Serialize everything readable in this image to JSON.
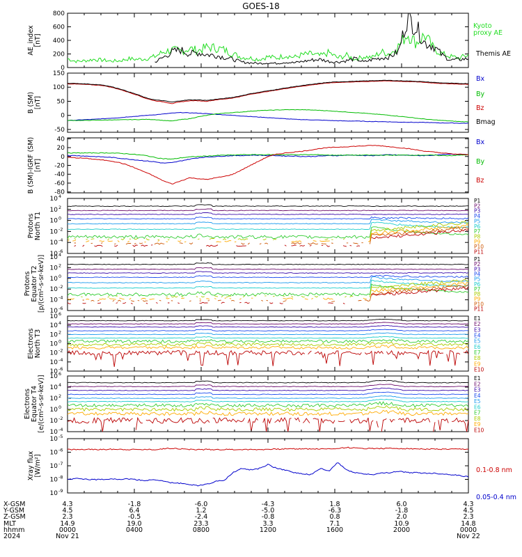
{
  "title": "GOES-18",
  "chart_data": [
    {
      "type": "line",
      "ylabel": [
        "AE_index",
        "[nT]"
      ],
      "ylim": [
        0,
        800
      ],
      "yticks": [
        "0",
        "200",
        "400",
        "600",
        "800"
      ],
      "series": [
        {
          "name": "Kyoto",
          "color": "#22dd22",
          "values": [
            130,
            90,
            100,
            120,
            110,
            95,
            100,
            130,
            120,
            130,
            160,
            230,
            260,
            240,
            280,
            250,
            300,
            290,
            260,
            200,
            150,
            140,
            120,
            160,
            140,
            180,
            150,
            190,
            200,
            170,
            220,
            140,
            180,
            120,
            160,
            150,
            230,
            200,
            320,
            500,
            360,
            480,
            280,
            200,
            160,
            140,
            190
          ]
        },
        {
          "name": "Themis AE",
          "color": "#000000",
          "values": [
            null,
            null,
            null,
            null,
            null,
            null,
            null,
            null,
            null,
            null,
            80,
            150,
            230,
            260,
            200,
            220,
            190,
            180,
            150,
            120,
            80,
            70,
            60,
            70,
            60,
            80,
            70,
            90,
            110,
            120,
            90,
            80,
            100,
            130,
            80,
            120,
            140,
            160,
            240,
            750,
            600,
            360,
            320,
            180,
            110,
            120,
            130
          ]
        }
      ],
      "legend_lines": [
        [
          "Kyoto",
          "proxy AE"
        ],
        [
          "Themis AE"
        ]
      ]
    },
    {
      "type": "line",
      "ylabel": [
        "B (SM)",
        "[nT]"
      ],
      "ylim": [
        -60,
        150
      ],
      "yticks": [
        "-50",
        "0",
        "50",
        "100",
        "150"
      ],
      "series": [
        {
          "name": "Bx",
          "color": "#0000cc",
          "values": [
            -18,
            -17,
            -15,
            -14,
            -12,
            -10,
            -8,
            -5,
            -3,
            0,
            2,
            5,
            8,
            10,
            9,
            8,
            6,
            4,
            2,
            0,
            -2,
            -4,
            -6,
            -8,
            -10,
            -12,
            -14,
            -15,
            -16,
            -17,
            -18,
            -19,
            -20,
            -20,
            -21,
            -22,
            -22,
            -23,
            -24,
            -24,
            -25,
            -25,
            -26,
            -27,
            -27,
            -28,
            -28
          ]
        },
        {
          "name": "By",
          "color": "#00bb00",
          "values": [
            -18,
            -18,
            -18,
            -17,
            -17,
            -16,
            -16,
            -15,
            -15,
            -14,
            -15,
            -18,
            -20,
            -15,
            -12,
            -5,
            0,
            5,
            8,
            10,
            12,
            15,
            17,
            18,
            19,
            20,
            20,
            20,
            19,
            18,
            16,
            14,
            12,
            10,
            8,
            5,
            3,
            0,
            -3,
            -6,
            -10,
            -13,
            -16,
            -18,
            -20,
            -22,
            -23
          ]
        },
        {
          "name": "Bz",
          "color": "#cc0000",
          "values": [
            112,
            111,
            110,
            108,
            106,
            100,
            92,
            82,
            72,
            60,
            52,
            48,
            42,
            48,
            52,
            52,
            50,
            55,
            58,
            62,
            68,
            75,
            80,
            85,
            90,
            95,
            100,
            104,
            108,
            112,
            115,
            117,
            118,
            119,
            120,
            121,
            122,
            122,
            121,
            120,
            119,
            117,
            115,
            113,
            112,
            111,
            110
          ]
        },
        {
          "name": "Bmag",
          "color": "#000000",
          "values": [
            114,
            113,
            112,
            110,
            108,
            102,
            94,
            84,
            74,
            62,
            55,
            52,
            47,
            52,
            55,
            55,
            53,
            57,
            60,
            64,
            70,
            77,
            82,
            87,
            92,
            97,
            102,
            106,
            110,
            114,
            117,
            119,
            120,
            121,
            122,
            123,
            124,
            124,
            123,
            122,
            121,
            119,
            117,
            115,
            114,
            113,
            113
          ]
        }
      ]
    },
    {
      "type": "line",
      "ylabel": [
        "B (SM)-IGRF (SM)",
        "[nT]"
      ],
      "ylim": [
        -82,
        42
      ],
      "yticks": [
        "-80",
        "-60",
        "-40",
        "-20",
        "0",
        "20",
        "40"
      ],
      "series": [
        {
          "name": "Bx",
          "color": "#0000cc",
          "values": [
            2,
            2,
            1,
            0,
            -1,
            -2,
            -4,
            -6,
            -8,
            -10,
            -12,
            -15,
            -14,
            -10,
            -6,
            -3,
            -1,
            0,
            1,
            2,
            2,
            3,
            3,
            2,
            2,
            1,
            1,
            0,
            0,
            1,
            2,
            2,
            3,
            3,
            2,
            2,
            3,
            4,
            3,
            3,
            2,
            2,
            3,
            4,
            5,
            5,
            5
          ]
        },
        {
          "name": "By",
          "color": "#00bb00",
          "values": [
            8,
            8,
            8,
            8,
            8,
            8,
            7,
            6,
            4,
            2,
            -2,
            -5,
            -6,
            -3,
            -1,
            0,
            1,
            2,
            3,
            3,
            4,
            4,
            4,
            4,
            4,
            4,
            4,
            4,
            4,
            4,
            3,
            3,
            3,
            3,
            3,
            3,
            3,
            3,
            3,
            3,
            3,
            3,
            3,
            2,
            2,
            3,
            4
          ]
        },
        {
          "name": "Bz",
          "color": "#cc0000",
          "values": [
            -2,
            -3,
            -4,
            -6,
            -8,
            -10,
            -14,
            -20,
            -28,
            -36,
            -45,
            -55,
            -62,
            -55,
            -48,
            -50,
            -52,
            -48,
            -45,
            -40,
            -30,
            -20,
            -10,
            0,
            5,
            8,
            10,
            12,
            15,
            18,
            20,
            21,
            22,
            23,
            24,
            25,
            24,
            22,
            20,
            18,
            15,
            12,
            10,
            8,
            6,
            5,
            4
          ]
        }
      ]
    },
    {
      "type": "line",
      "ylabel": [
        "Protons",
        "North T1"
      ],
      "log": true,
      "ylim_exp": [
        -6,
        4
      ],
      "yticks": [
        "10^4",
        "10^2",
        "10^0",
        "10^-2",
        "10^-4",
        "10^-6"
      ],
      "channels": [
        {
          "name": "P1",
          "color": "#000000",
          "base": 2.6,
          "event": 1.2
        },
        {
          "name": "P2",
          "color": "#6a0a6a",
          "base": 1.8,
          "event": 1.0
        },
        {
          "name": "P3",
          "color": "#3a0aaa",
          "base": 1.1,
          "event": 0.9
        },
        {
          "name": "P4",
          "color": "#1a4aee",
          "base": 0.3,
          "event": 0.5
        },
        {
          "name": "P5",
          "color": "#1a9aee",
          "base": -0.6,
          "event": 0.2
        },
        {
          "name": "P6",
          "color": "#1acccc",
          "base": -1.6,
          "event": -0.3
        },
        {
          "name": "P7",
          "color": "#30cc30",
          "base": -3.0,
          "event": -1.2
        },
        {
          "name": "P8",
          "color": "#aacc00",
          "base": -3.4,
          "event": -1.8
        },
        {
          "name": "P9",
          "color": "#ffaa00",
          "base": -3.8,
          "event": -2.4
        },
        {
          "name": "P10",
          "color": "#cc5500",
          "base": -4.2,
          "event": -2.8
        },
        {
          "name": "P11",
          "color": "#bb0000",
          "base": -4.6,
          "event": -3.2
        }
      ]
    },
    {
      "type": "line",
      "ylabel": [
        "Protons",
        "Equator T2",
        "[p/(cm²-s-sr-keV)]"
      ],
      "log": true,
      "ylim_exp": [
        -6,
        4
      ],
      "yticks": [
        "10^4",
        "10^2",
        "10^0",
        "10^-2",
        "10^-4",
        "10^-6"
      ],
      "channels": [
        {
          "name": "P1",
          "color": "#000000",
          "base": 2.6,
          "event": 1.2
        },
        {
          "name": "P2",
          "color": "#6a0a6a",
          "base": 1.7,
          "event": 1.0
        },
        {
          "name": "P3",
          "color": "#3a0aaa",
          "base": 1.0,
          "event": 0.9
        },
        {
          "name": "P4",
          "color": "#1a4aee",
          "base": 0.2,
          "event": 0.5
        },
        {
          "name": "P5",
          "color": "#1a9aee",
          "base": -0.8,
          "event": 0.2
        },
        {
          "name": "P6",
          "color": "#1acccc",
          "base": -1.8,
          "event": -0.4
        },
        {
          "name": "P7",
          "color": "#30cc30",
          "base": -3.0,
          "event": -1.2
        },
        {
          "name": "P8",
          "color": "#aacc00",
          "base": -3.4,
          "event": -1.8
        },
        {
          "name": "P9",
          "color": "#ffaa00",
          "base": -3.8,
          "event": -2.4
        },
        {
          "name": "P10",
          "color": "#cc5500",
          "base": -4.2,
          "event": -2.8
        },
        {
          "name": "P11",
          "color": "#bb0000",
          "base": -4.6,
          "event": -3.2
        }
      ]
    },
    {
      "type": "line",
      "ylabel": [
        "Electrons",
        "North T3"
      ],
      "log": true,
      "ylim_exp": [
        -6,
        6
      ],
      "yticks": [
        "10^6",
        "10^4",
        "10^2",
        "10^0",
        "10^-2",
        "10^-4",
        "10^-6"
      ],
      "channels": [
        {
          "name": "E1",
          "color": "#000000",
          "base": 5.0,
          "event": 0.3
        },
        {
          "name": "E2",
          "color": "#6a0a6a",
          "base": 4.3,
          "event": 0.3
        },
        {
          "name": "E3",
          "color": "#3a0aaa",
          "base": 3.6,
          "event": 0.3
        },
        {
          "name": "E4",
          "color": "#1a4aee",
          "base": 2.8,
          "event": 0.3
        },
        {
          "name": "E5",
          "color": "#1a9aee",
          "base": 2.0,
          "event": 0.3
        },
        {
          "name": "E6",
          "color": "#1acccc",
          "base": 1.2,
          "event": 0.3
        },
        {
          "name": "E7",
          "color": "#30cc30",
          "base": 0.5,
          "event": 0.3
        },
        {
          "name": "E8",
          "color": "#aacc00",
          "base": -0.2,
          "event": 0.3
        },
        {
          "name": "E9",
          "color": "#ffaa00",
          "base": -0.9,
          "event": 0.3
        },
        {
          "name": "E10",
          "color": "#bb0000",
          "base": -2.0,
          "event": 0.0
        }
      ],
      "legend": [
        "E1",
        "E2",
        "E3",
        "E4",
        "E5",
        "E6",
        "E7",
        "E8",
        "E9",
        "E10"
      ]
    },
    {
      "type": "line",
      "ylabel": [
        "Electrons",
        "Equator T4",
        "[e/(cm²-s-sr-keV)]"
      ],
      "log": true,
      "ylim_exp": [
        -4,
        6
      ],
      "yticks": [
        "10^6",
        "10^4",
        "10^2",
        "10^0",
        "10^-2",
        "10^-4"
      ],
      "channels": [
        {
          "name": "E1",
          "color": "#000000",
          "base": 4.8,
          "event": 0.4
        },
        {
          "name": "E2",
          "color": "#6a0a6a",
          "base": 4.1,
          "event": 0.4
        },
        {
          "name": "E3",
          "color": "#3a0aaa",
          "base": 3.4,
          "event": 0.4
        },
        {
          "name": "E4",
          "color": "#1a4aee",
          "base": 2.7,
          "event": 0.4
        },
        {
          "name": "E5",
          "color": "#1a9aee",
          "base": 2.0,
          "event": 0.4
        },
        {
          "name": "E6",
          "color": "#1acccc",
          "base": 1.4,
          "event": 0.4
        },
        {
          "name": "E7",
          "color": "#30cc30",
          "base": 0.7,
          "event": 0.4
        },
        {
          "name": "E8",
          "color": "#aacc00",
          "base": 0.0,
          "event": 0.4
        },
        {
          "name": "E9",
          "color": "#ffaa00",
          "base": -0.8,
          "event": 0.4
        },
        {
          "name": "E10",
          "color": "#bb0000",
          "base": -2.0,
          "event": 0.0
        }
      ],
      "legend": [
        "E1",
        "E2",
        "E3",
        "E4",
        "E5",
        "E6",
        "E7",
        "E8",
        "E9",
        "E10"
      ]
    },
    {
      "type": "line",
      "ylabel": [
        "Xray flux",
        "[W/m²]"
      ],
      "log": true,
      "ylim_exp": [
        -9,
        -5
      ],
      "yticks": [
        "10^-5",
        "10^-6",
        "10^-7",
        "10^-8",
        "10^-9"
      ],
      "series": [
        {
          "name": "0.1-0.8 nm",
          "color": "#cc0000",
          "values": [
            -5.8,
            -5.8,
            -5.8,
            -5.8,
            -5.8,
            -5.78,
            -5.78,
            -5.8,
            -5.8,
            -5.8,
            -5.8,
            -5.75,
            -5.7,
            -5.75,
            -5.8,
            -5.8,
            -5.8,
            -5.8,
            -5.8,
            -5.8,
            -5.8,
            -5.8,
            -5.8,
            -5.78,
            -5.78,
            -5.75,
            -5.75,
            -5.75,
            -5.75,
            -5.76,
            -5.75,
            -5.72,
            -5.65,
            -5.7,
            -5.72,
            -5.72,
            -5.72,
            -5.72,
            -5.72,
            -5.74,
            -5.75,
            -5.77,
            -5.77,
            -5.78,
            -5.78,
            -5.78,
            -5.78
          ]
        },
        {
          "name": "0.05-0.4 nm",
          "color": "#0000cc",
          "values": [
            -8.0,
            -7.95,
            -7.97,
            -8.02,
            -8.0,
            -7.95,
            -8.0,
            -7.97,
            -8.03,
            -8.1,
            -8.0,
            -8.15,
            -8.25,
            -8.3,
            -8.38,
            -8.45,
            -8.35,
            -8.15,
            -8.05,
            -7.5,
            -7.2,
            -7.3,
            -7.2,
            -6.9,
            -7.2,
            -7.3,
            -7.5,
            -7.6,
            -7.65,
            -7.2,
            -7.4,
            -6.75,
            -7.3,
            -7.5,
            -7.6,
            -7.65,
            -7.55,
            -7.5,
            -7.4,
            -7.5,
            -7.5,
            -7.55,
            -7.55,
            -7.6,
            -7.65,
            -7.72,
            -7.8
          ]
        }
      ]
    }
  ],
  "x_axis": {
    "row_labels": [
      "X-GSM",
      "Y-GSM",
      "Z-GSM",
      "MLT",
      "hhmm",
      "2024"
    ],
    "columns": [
      [
        "4.3",
        "4.5",
        "2.3",
        "14.9",
        "0000",
        "Nov 21"
      ],
      [
        "-1.8",
        "6.4",
        "-0.5",
        "19.0",
        "0400",
        ""
      ],
      [
        "-6.0",
        "1.2",
        "-2.4",
        "23.3",
        "0800",
        ""
      ],
      [
        "-4.3",
        "-5.0",
        "-0.8",
        "3.3",
        "1200",
        ""
      ],
      [
        "1.8",
        "-6.3",
        "0.8",
        "7.1",
        "1600",
        ""
      ],
      [
        "6.0",
        "-1.8",
        "2.0",
        "10.9",
        "2000",
        ""
      ],
      [
        "4.3",
        "4.5",
        "2.3",
        "14.8",
        "0000",
        "Nov 22"
      ]
    ]
  }
}
